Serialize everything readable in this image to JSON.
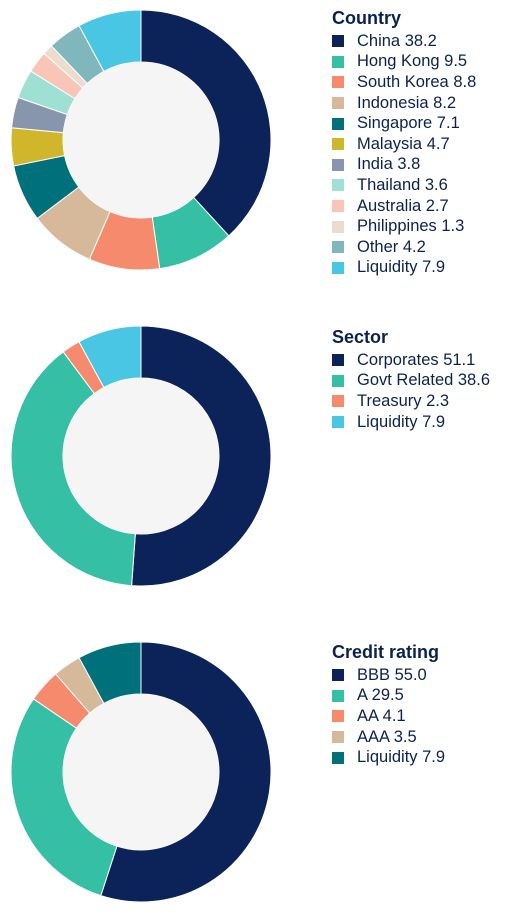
{
  "chart_data": [
    {
      "type": "pie",
      "variant": "donut",
      "title": "Country",
      "series": [
        {
          "label": "China 38.2",
          "value": 38.2,
          "color": "#0b2358"
        },
        {
          "label": "Hong Kong 9.5",
          "value": 9.5,
          "color": "#35bfa5"
        },
        {
          "label": "South Korea 8.8",
          "value": 8.8,
          "color": "#f58a6c"
        },
        {
          "label": "Indonesia 8.2",
          "value": 8.2,
          "color": "#d6b99a"
        },
        {
          "label": "Singapore 7.1",
          "value": 7.1,
          "color": "#00707a"
        },
        {
          "label": "Malaysia 4.7",
          "value": 4.7,
          "color": "#cfb62b"
        },
        {
          "label": "India 3.8",
          "value": 3.8,
          "color": "#8796ad"
        },
        {
          "label": "Thailand 3.6",
          "value": 3.6,
          "color": "#9fe0d4"
        },
        {
          "label": "Australia 2.7",
          "value": 2.7,
          "color": "#f9c5b6"
        },
        {
          "label": "Philippines 1.3",
          "value": 1.3,
          "color": "#ecdcce"
        },
        {
          "label": "Other 4.2",
          "value": 4.2,
          "color": "#80b7bd"
        },
        {
          "label": "Liquidity 7.9",
          "value": 7.9,
          "color": "#48c6e4"
        }
      ]
    },
    {
      "type": "pie",
      "variant": "donut",
      "title": "Sector",
      "series": [
        {
          "label": "Corporates 51.1",
          "value": 51.1,
          "color": "#0b2358"
        },
        {
          "label": "Govt Related 38.6",
          "value": 38.6,
          "color": "#35bfa5"
        },
        {
          "label": "Treasury 2.3",
          "value": 2.3,
          "color": "#f58a6c"
        },
        {
          "label": "Liquidity 7.9",
          "value": 7.9,
          "color": "#48c6e4"
        }
      ]
    },
    {
      "type": "pie",
      "variant": "donut",
      "title": "Credit rating",
      "series": [
        {
          "label": "BBB 55.0",
          "value": 55.0,
          "color": "#0b2358"
        },
        {
          "label": "A 29.5",
          "value": 29.5,
          "color": "#35bfa5"
        },
        {
          "label": "AA 4.1",
          "value": 4.1,
          "color": "#f58a6c"
        },
        {
          "label": "AAA 3.5",
          "value": 3.5,
          "color": "#d6b99a"
        },
        {
          "label": "Liquidity 7.9",
          "value": 7.9,
          "color": "#00707a"
        }
      ]
    }
  ]
}
